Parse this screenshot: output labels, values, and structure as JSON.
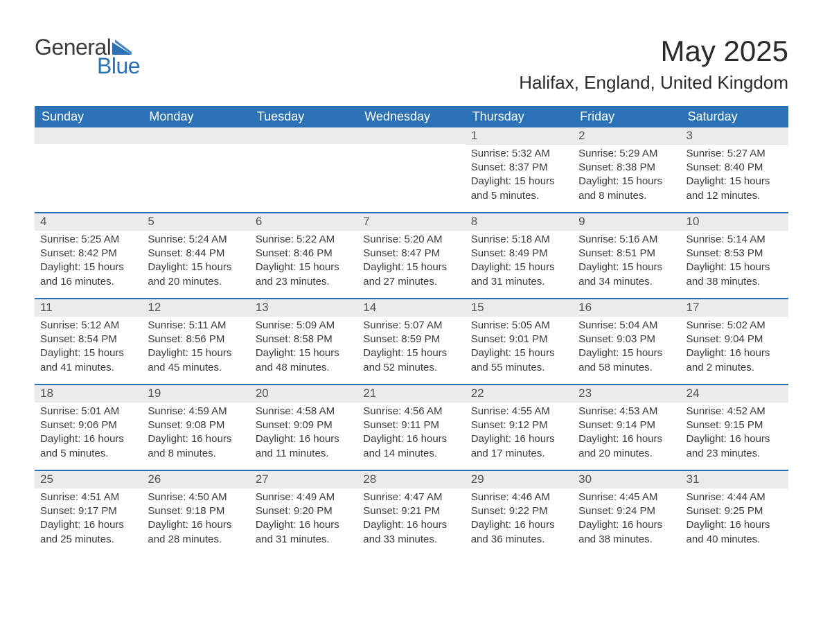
{
  "logo": {
    "text1": "General",
    "text2": "Blue",
    "icon_color": "#2a72b5"
  },
  "title": "May 2025",
  "location": "Halifax, England, United Kingdom",
  "colors": {
    "header_bg": "#2a72b5",
    "header_text": "#ffffff",
    "daynum_bg": "#ebebeb",
    "week_border": "#2a72b5",
    "body_text": "#3a3a3a"
  },
  "weekdays": [
    "Sunday",
    "Monday",
    "Tuesday",
    "Wednesday",
    "Thursday",
    "Friday",
    "Saturday"
  ],
  "weeks": [
    [
      null,
      null,
      null,
      null,
      {
        "n": "1",
        "sunrise": "5:32 AM",
        "sunset": "8:37 PM",
        "daylight": "15 hours and 5 minutes."
      },
      {
        "n": "2",
        "sunrise": "5:29 AM",
        "sunset": "8:38 PM",
        "daylight": "15 hours and 8 minutes."
      },
      {
        "n": "3",
        "sunrise": "5:27 AM",
        "sunset": "8:40 PM",
        "daylight": "15 hours and 12 minutes."
      }
    ],
    [
      {
        "n": "4",
        "sunrise": "5:25 AM",
        "sunset": "8:42 PM",
        "daylight": "15 hours and 16 minutes."
      },
      {
        "n": "5",
        "sunrise": "5:24 AM",
        "sunset": "8:44 PM",
        "daylight": "15 hours and 20 minutes."
      },
      {
        "n": "6",
        "sunrise": "5:22 AM",
        "sunset": "8:46 PM",
        "daylight": "15 hours and 23 minutes."
      },
      {
        "n": "7",
        "sunrise": "5:20 AM",
        "sunset": "8:47 PM",
        "daylight": "15 hours and 27 minutes."
      },
      {
        "n": "8",
        "sunrise": "5:18 AM",
        "sunset": "8:49 PM",
        "daylight": "15 hours and 31 minutes."
      },
      {
        "n": "9",
        "sunrise": "5:16 AM",
        "sunset": "8:51 PM",
        "daylight": "15 hours and 34 minutes."
      },
      {
        "n": "10",
        "sunrise": "5:14 AM",
        "sunset": "8:53 PM",
        "daylight": "15 hours and 38 minutes."
      }
    ],
    [
      {
        "n": "11",
        "sunrise": "5:12 AM",
        "sunset": "8:54 PM",
        "daylight": "15 hours and 41 minutes."
      },
      {
        "n": "12",
        "sunrise": "5:11 AM",
        "sunset": "8:56 PM",
        "daylight": "15 hours and 45 minutes."
      },
      {
        "n": "13",
        "sunrise": "5:09 AM",
        "sunset": "8:58 PM",
        "daylight": "15 hours and 48 minutes."
      },
      {
        "n": "14",
        "sunrise": "5:07 AM",
        "sunset": "8:59 PM",
        "daylight": "15 hours and 52 minutes."
      },
      {
        "n": "15",
        "sunrise": "5:05 AM",
        "sunset": "9:01 PM",
        "daylight": "15 hours and 55 minutes."
      },
      {
        "n": "16",
        "sunrise": "5:04 AM",
        "sunset": "9:03 PM",
        "daylight": "15 hours and 58 minutes."
      },
      {
        "n": "17",
        "sunrise": "5:02 AM",
        "sunset": "9:04 PM",
        "daylight": "16 hours and 2 minutes."
      }
    ],
    [
      {
        "n": "18",
        "sunrise": "5:01 AM",
        "sunset": "9:06 PM",
        "daylight": "16 hours and 5 minutes."
      },
      {
        "n": "19",
        "sunrise": "4:59 AM",
        "sunset": "9:08 PM",
        "daylight": "16 hours and 8 minutes."
      },
      {
        "n": "20",
        "sunrise": "4:58 AM",
        "sunset": "9:09 PM",
        "daylight": "16 hours and 11 minutes."
      },
      {
        "n": "21",
        "sunrise": "4:56 AM",
        "sunset": "9:11 PM",
        "daylight": "16 hours and 14 minutes."
      },
      {
        "n": "22",
        "sunrise": "4:55 AM",
        "sunset": "9:12 PM",
        "daylight": "16 hours and 17 minutes."
      },
      {
        "n": "23",
        "sunrise": "4:53 AM",
        "sunset": "9:14 PM",
        "daylight": "16 hours and 20 minutes."
      },
      {
        "n": "24",
        "sunrise": "4:52 AM",
        "sunset": "9:15 PM",
        "daylight": "16 hours and 23 minutes."
      }
    ],
    [
      {
        "n": "25",
        "sunrise": "4:51 AM",
        "sunset": "9:17 PM",
        "daylight": "16 hours and 25 minutes."
      },
      {
        "n": "26",
        "sunrise": "4:50 AM",
        "sunset": "9:18 PM",
        "daylight": "16 hours and 28 minutes."
      },
      {
        "n": "27",
        "sunrise": "4:49 AM",
        "sunset": "9:20 PM",
        "daylight": "16 hours and 31 minutes."
      },
      {
        "n": "28",
        "sunrise": "4:47 AM",
        "sunset": "9:21 PM",
        "daylight": "16 hours and 33 minutes."
      },
      {
        "n": "29",
        "sunrise": "4:46 AM",
        "sunset": "9:22 PM",
        "daylight": "16 hours and 36 minutes."
      },
      {
        "n": "30",
        "sunrise": "4:45 AM",
        "sunset": "9:24 PM",
        "daylight": "16 hours and 38 minutes."
      },
      {
        "n": "31",
        "sunrise": "4:44 AM",
        "sunset": "9:25 PM",
        "daylight": "16 hours and 40 minutes."
      }
    ]
  ],
  "labels": {
    "sunrise": "Sunrise: ",
    "sunset": "Sunset: ",
    "daylight": "Daylight: "
  }
}
